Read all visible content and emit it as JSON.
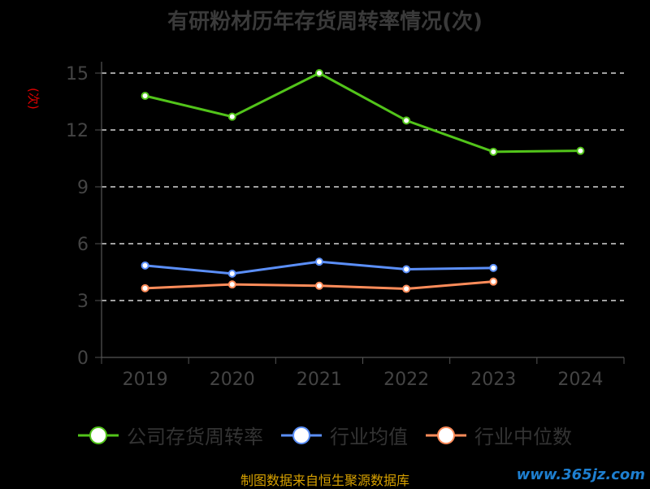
{
  "chart_data": {
    "type": "line",
    "title": "有研粉材历年存货周转率情况(次)",
    "unit_label": "(次)",
    "categories": [
      "2019",
      "2020",
      "2021",
      "2022",
      "2023",
      "2024"
    ],
    "ylim": [
      0,
      15
    ],
    "yticks": [
      0,
      3,
      6,
      9,
      12,
      15
    ],
    "grid": true,
    "legend_position": "bottom",
    "series": [
      {
        "name": "公司存货周转率",
        "color": "#52c41a",
        "values": [
          13.8,
          12.7,
          15.0,
          12.5,
          10.85,
          10.9
        ]
      },
      {
        "name": "行业均值",
        "color": "#5b8ff9",
        "values": [
          4.85,
          4.42,
          5.05,
          4.65,
          4.72,
          null
        ]
      },
      {
        "name": "行业中位数",
        "color": "#ff8c5a",
        "values": [
          3.65,
          3.85,
          3.78,
          3.62,
          4.0,
          null
        ]
      }
    ]
  },
  "footer": {
    "source": "制图数据来自恒生聚源数据库",
    "watermark": "www.365jz.com"
  }
}
